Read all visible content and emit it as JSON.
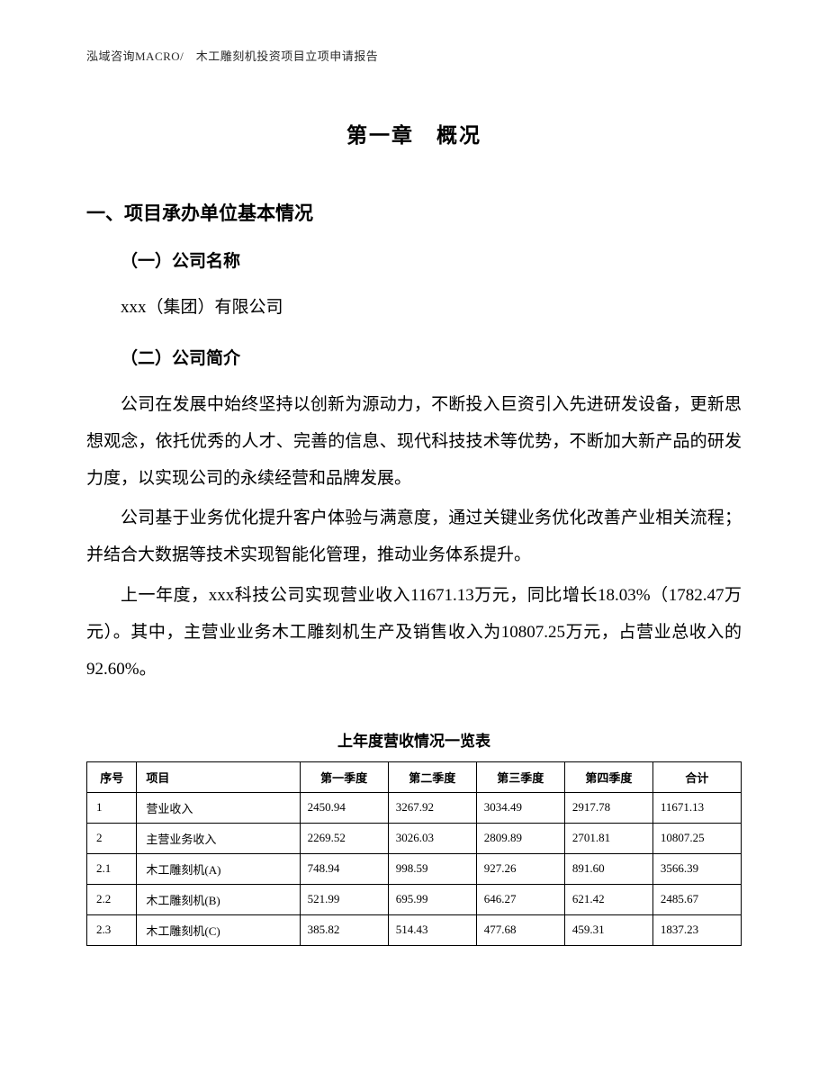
{
  "header": {
    "text": "泓域咨询MACRO/　木工雕刻机投资项目立项申请报告"
  },
  "chapter": {
    "title": "第一章　概况"
  },
  "section1": {
    "heading": "一、项目承办单位基本情况",
    "sub1": {
      "heading": "（一）公司名称",
      "content": "xxx（集团）有限公司"
    },
    "sub2": {
      "heading": "（二）公司简介",
      "para1": "公司在发展中始终坚持以创新为源动力，不断投入巨资引入先进研发设备，更新思想观念，依托优秀的人才、完善的信息、现代科技技术等优势，不断加大新产品的研发力度，以实现公司的永续经营和品牌发展。",
      "para2": "公司基于业务优化提升客户体验与满意度，通过关键业务优化改善产业相关流程；并结合大数据等技术实现智能化管理，推动业务体系提升。",
      "para3": "上一年度，xxx科技公司实现营业收入11671.13万元，同比增长18.03%（1782.47万元）。其中，主营业业务木工雕刻机生产及销售收入为10807.25万元，占营业总收入的92.60%。"
    }
  },
  "table": {
    "title": "上年度营收情况一览表",
    "columns": [
      "序号",
      "项目",
      "第一季度",
      "第二季度",
      "第三季度",
      "第四季度",
      "合计"
    ],
    "rows": [
      [
        "1",
        "营业收入",
        "2450.94",
        "3267.92",
        "3034.49",
        "2917.78",
        "11671.13"
      ],
      [
        "2",
        "主营业务收入",
        "2269.52",
        "3026.03",
        "2809.89",
        "2701.81",
        "10807.25"
      ],
      [
        "2.1",
        "木工雕刻机(A)",
        "748.94",
        "998.59",
        "927.26",
        "891.60",
        "3566.39"
      ],
      [
        "2.2",
        "木工雕刻机(B)",
        "521.99",
        "695.99",
        "646.27",
        "621.42",
        "2485.67"
      ],
      [
        "2.3",
        "木工雕刻机(C)",
        "385.82",
        "514.43",
        "477.68",
        "459.31",
        "1837.23"
      ]
    ]
  }
}
